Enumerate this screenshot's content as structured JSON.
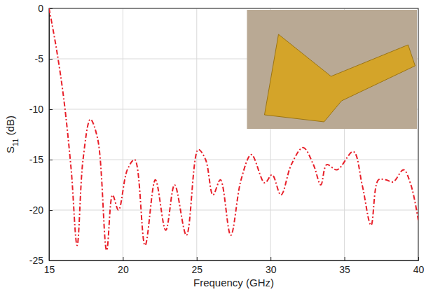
{
  "chart_data": {
    "type": "line",
    "x_label": "Frequency (GHz)",
    "y_label": "S11 (dB)",
    "xlim": [
      15,
      40
    ],
    "xticks": [
      15,
      20,
      25,
      30,
      35,
      40
    ],
    "ylim": [
      -25,
      0
    ],
    "yticks": [
      -25,
      -20,
      -15,
      -10,
      -5,
      0
    ],
    "grid": true,
    "series": [
      {
        "color": "#e8202a",
        "line_style": "dashdot",
        "x": [
          15,
          15.5,
          16,
          16.5,
          16.9,
          17.3,
          17.8,
          18.3,
          18.9,
          19.3,
          19.7,
          20.3,
          20.8,
          21.5,
          22.2,
          22.9,
          23.5,
          24.3,
          25.1,
          25.6,
          26.1,
          26.6,
          27.3,
          28.0,
          28.7,
          29.6,
          30.1,
          30.7,
          31.4,
          32.2,
          32.9,
          33.4,
          33.8,
          34.5,
          35.6,
          36.2,
          36.8,
          37.3,
          37.8,
          38.3,
          39.0,
          39.5,
          40
        ],
        "values": [
          0,
          -4,
          -9,
          -16,
          -23.5,
          -15,
          -11,
          -13,
          -24,
          -18.5,
          -20,
          -16,
          -15,
          -23.5,
          -17,
          -22,
          -17.5,
          -22.5,
          -14,
          -15,
          -18.5,
          -17,
          -22.5,
          -17,
          -14.5,
          -17.3,
          -16.5,
          -18.5,
          -15.5,
          -13.8,
          -15.5,
          -17.5,
          -15.5,
          -16,
          -14.2,
          -17.5,
          -21.5,
          -17,
          -17,
          -17.2,
          -16,
          -17.5,
          -21
        ]
      }
    ]
  }
}
